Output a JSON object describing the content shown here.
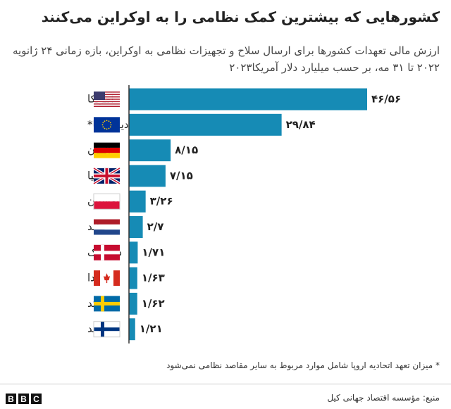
{
  "chart_data": {
    "type": "bar",
    "orientation": "horizontal",
    "title": "کشورهایی که بیشترین کمک نظامی را به اوکراین می‌کنند",
    "subtitle": "ارزش مالی تعهدات کشورها برای ارسال سلاح و تجهیزات نظامی به اوکراین، بازه زمانی ۲۴ ژانویه ۲۰۲۲ تا ۳۱ مه، بر حسب میلیارد دلار آمریکا۲۰۲۳",
    "categories": [
      "آمریکا",
      "اتحادیه اروپا*",
      "آلمان",
      "بریتانیا",
      "لهستان",
      "هلند",
      "دانمارک",
      "کانادا",
      "سوئد",
      "فنلاند"
    ],
    "values": [
      46.56,
      29.84,
      8.15,
      7.15,
      3.26,
      2.7,
      1.71,
      1.63,
      1.62,
      1.21
    ],
    "value_labels": [
      "۴۶/۵۶",
      "۲۹/۸۴",
      "۸/۱۵",
      "۷/۱۵",
      "۳/۲۶",
      "۲/۷",
      "۱/۷۱",
      "۱/۶۳",
      "۱/۶۲",
      "۱/۲۱"
    ],
    "color": "#168bb5",
    "footnote": "* میزان تعهد اتحادیه اروپا شامل موارد مربوط به سایر مقاصد نظامی نمی‌شود",
    "source": "منبع: مؤسسه اقتصاد جهانی کیل",
    "logo": [
      "B",
      "B",
      "C"
    ]
  }
}
